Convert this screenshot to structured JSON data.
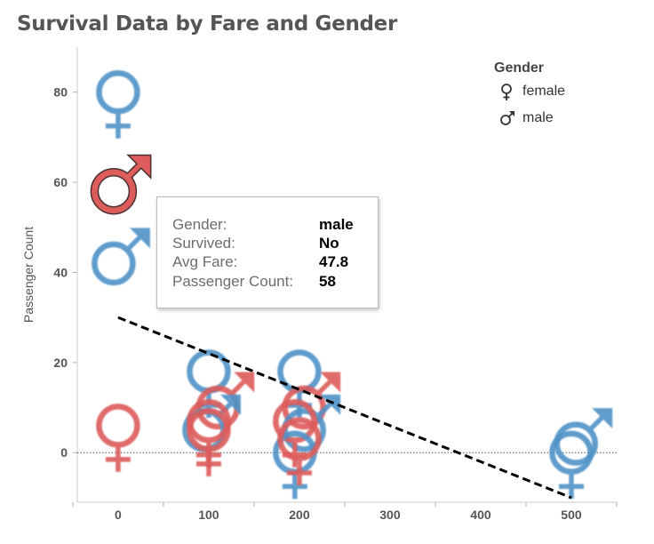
{
  "chart_data": {
    "type": "scatter",
    "title": "Survival Data by Fare and Gender",
    "xlabel": "",
    "ylabel": "Passenger Count",
    "xlim": [
      -45,
      550
    ],
    "ylim": [
      -11,
      90
    ],
    "x_ticks": [
      0,
      100,
      200,
      300,
      400,
      500
    ],
    "y_ticks": [
      0,
      20,
      40,
      60,
      80
    ],
    "legend": {
      "title": "Gender",
      "position": "top-right",
      "items": [
        {
          "label": "female",
          "icon": "female-symbol-icon"
        },
        {
          "label": "male",
          "icon": "male-symbol-icon"
        }
      ]
    },
    "colors": {
      "survived": "#4f93c7",
      "not_survived": "#dd5c5c"
    },
    "points": [
      {
        "gender": "female",
        "survived": "Yes",
        "avg_fare": 0,
        "count": 80
      },
      {
        "gender": "male",
        "survived": "No",
        "avg_fare": 0,
        "count": 58
      },
      {
        "gender": "male",
        "survived": "Yes",
        "avg_fare": 0,
        "count": 42
      },
      {
        "gender": "female",
        "survived": "No",
        "avg_fare": 0,
        "count": 6
      },
      {
        "gender": "female",
        "survived": "Yes",
        "avg_fare": 100,
        "count": 18
      },
      {
        "gender": "male",
        "survived": "No",
        "avg_fare": 115,
        "count": 10
      },
      {
        "gender": "male",
        "survived": "Yes",
        "avg_fare": 100,
        "count": 5
      },
      {
        "gender": "female",
        "survived": "No",
        "avg_fare": 100,
        "count": 7
      },
      {
        "gender": "female",
        "survived": "No",
        "avg_fare": 100,
        "count": 5
      },
      {
        "gender": "female",
        "survived": "Yes",
        "avg_fare": 200,
        "count": 18
      },
      {
        "gender": "male",
        "survived": "No",
        "avg_fare": 210,
        "count": 10
      },
      {
        "gender": "male",
        "survived": "Yes",
        "avg_fare": 210,
        "count": 5
      },
      {
        "gender": "female",
        "survived": "No",
        "avg_fare": 195,
        "count": 7
      },
      {
        "gender": "female",
        "survived": "Yes",
        "avg_fare": 195,
        "count": 0
      },
      {
        "gender": "female",
        "survived": "No",
        "avg_fare": 200,
        "count": 3
      },
      {
        "gender": "female",
        "survived": "Yes",
        "avg_fare": 500,
        "count": 0
      },
      {
        "gender": "male",
        "survived": "Yes",
        "avg_fare": 510,
        "count": 2
      }
    ],
    "trend_line": {
      "x": [
        0,
        500
      ],
      "y": [
        30,
        -10
      ]
    }
  },
  "tooltip": {
    "rows": [
      {
        "key": "Gender:",
        "value": "male"
      },
      {
        "key": "Survived:",
        "value": "No"
      },
      {
        "key": "Avg Fare:",
        "value": "47.8"
      },
      {
        "key": "Passenger Count:",
        "value": "58"
      }
    ]
  }
}
